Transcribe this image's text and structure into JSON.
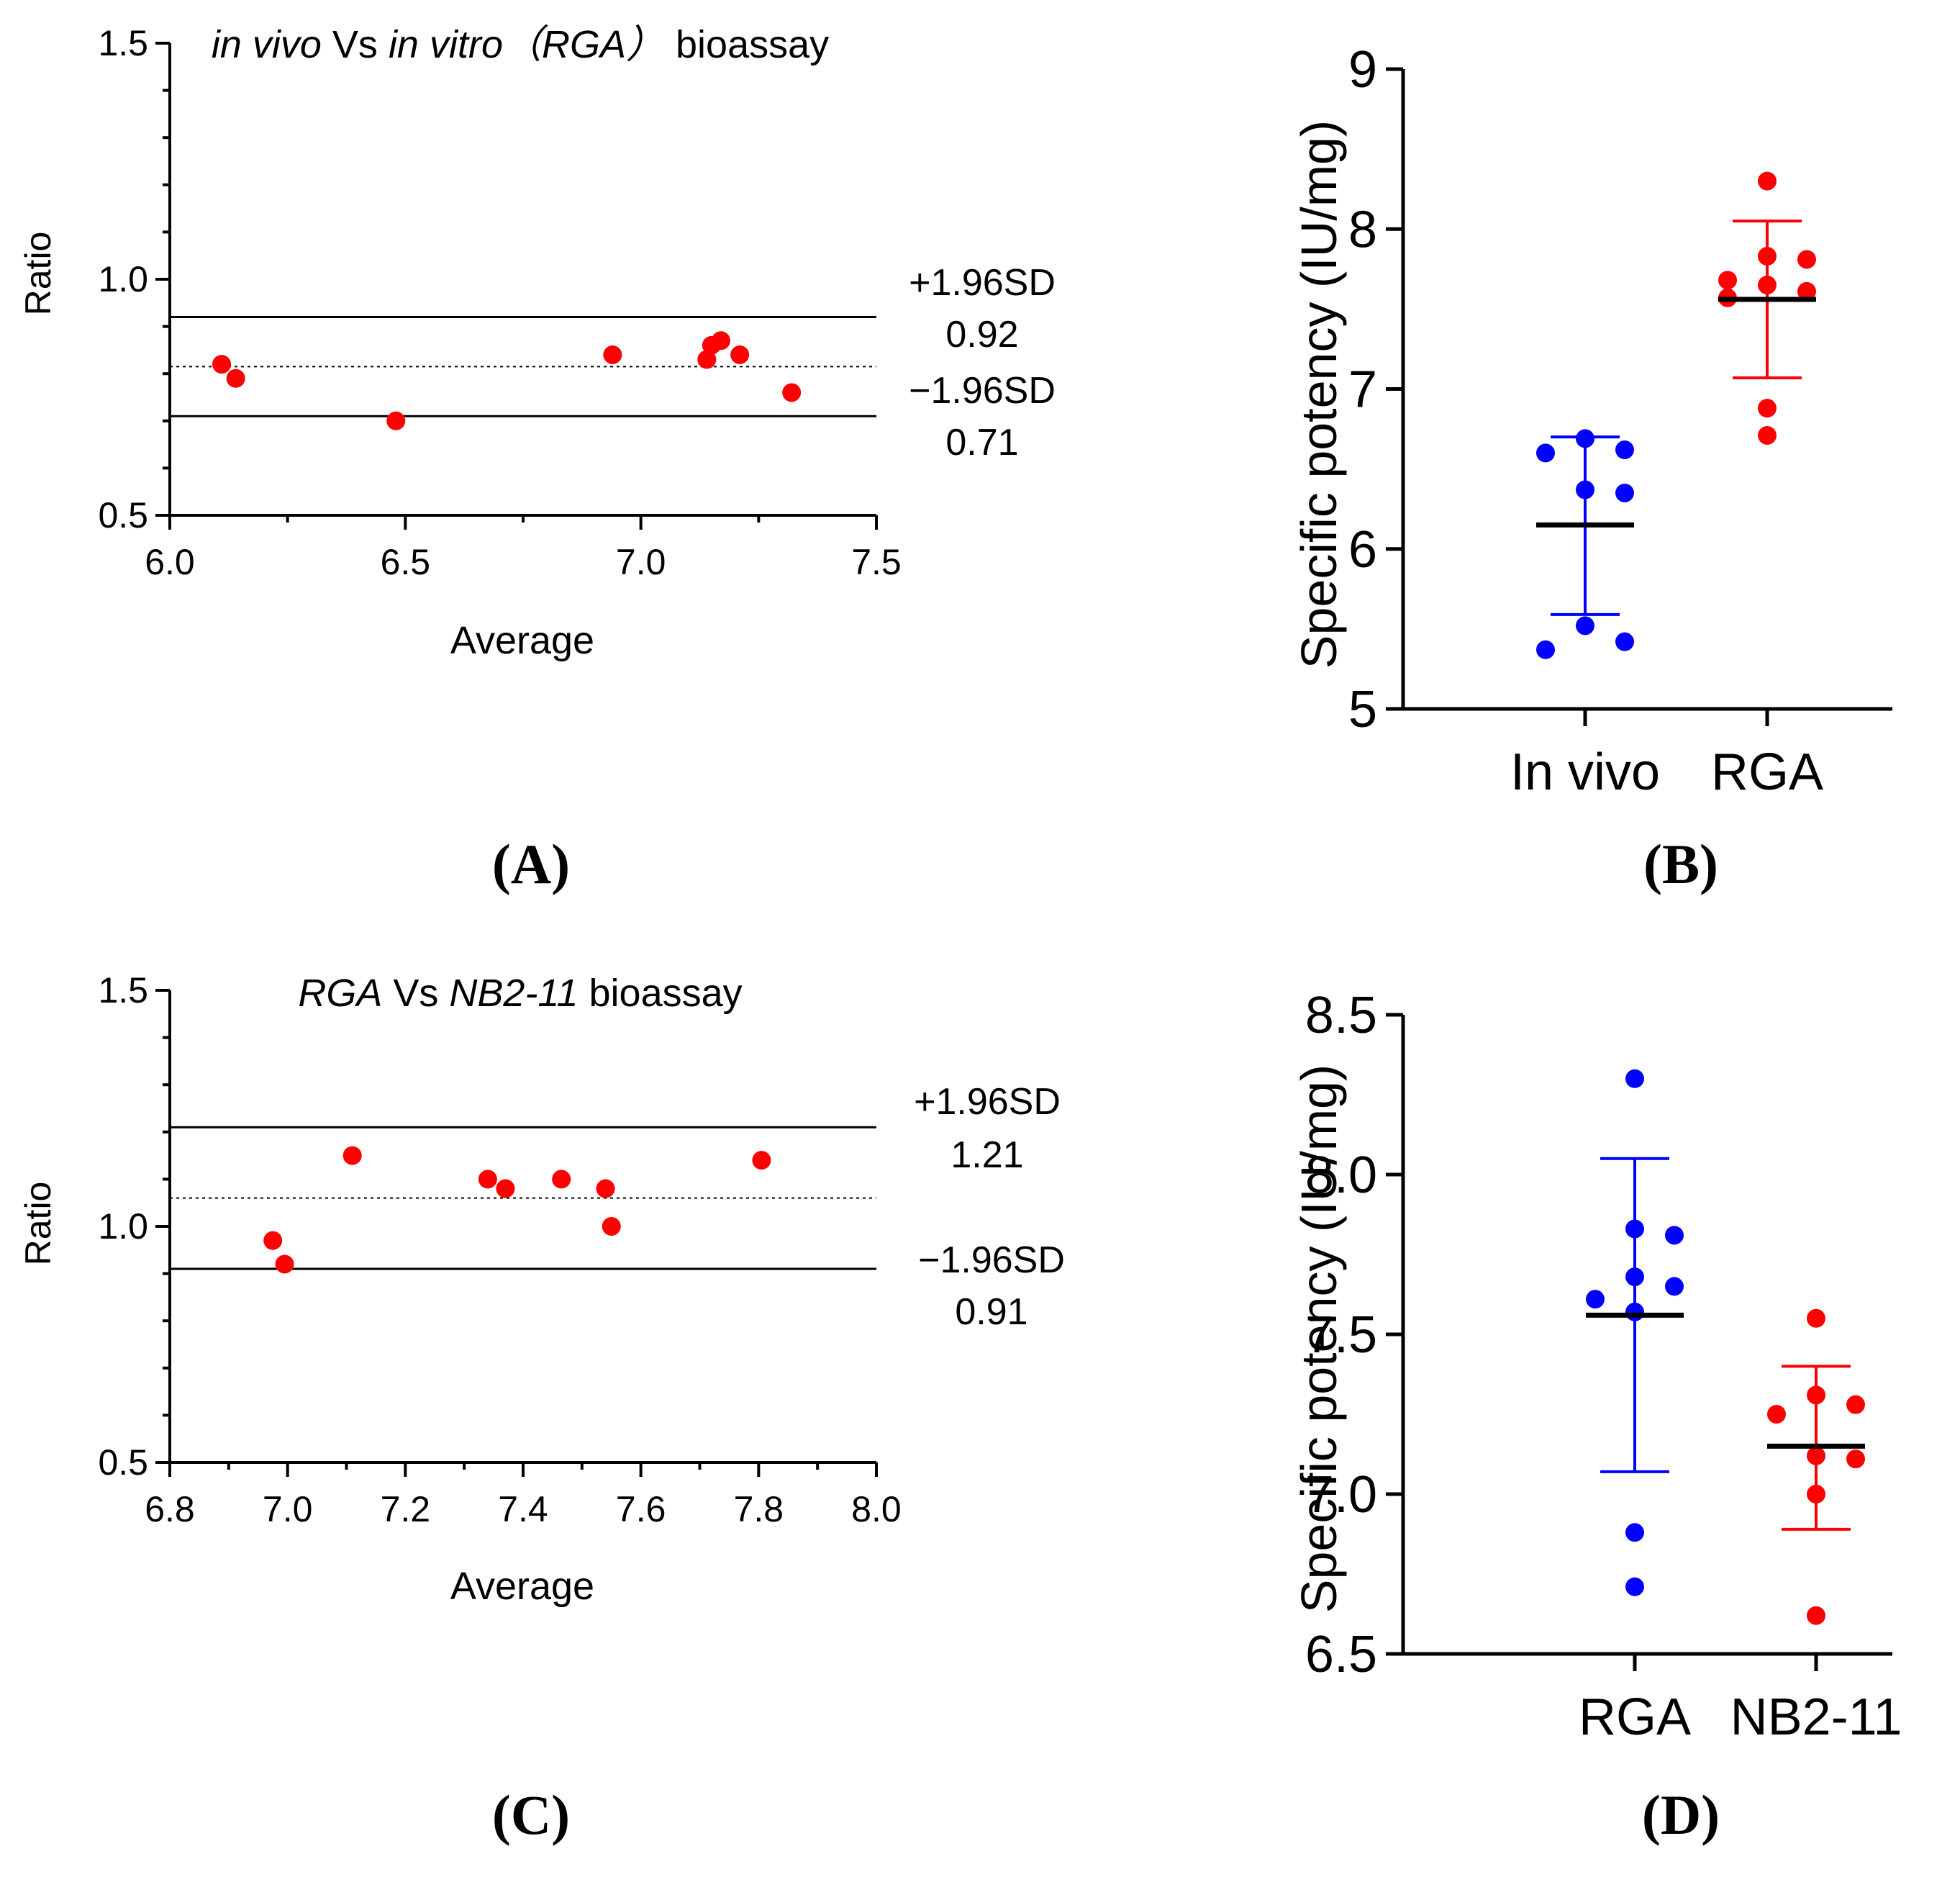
{
  "colors": {
    "red": "#ff0000",
    "blue": "#0000ff",
    "black": "#000000"
  },
  "chart_data": [
    {
      "id": "A",
      "type": "scatter",
      "panel_label": "(A)",
      "title_parts": [
        {
          "text": "in vivo",
          "italic": true
        },
        {
          "text": " Vs ",
          "italic": false
        },
        {
          "text": "in vitro",
          "italic": true
        },
        {
          "text": "（RGA）",
          "italic": true
        },
        {
          "text": " bioassay",
          "italic": false
        }
      ],
      "xlabel": "Average",
      "ylabel": "Ratio",
      "xlim": [
        6.0,
        7.5
      ],
      "ylim": [
        0.5,
        1.5
      ],
      "xticks": [
        "6.0",
        "6.5",
        "7.0",
        "7.5"
      ],
      "yticks": [
        "0.5",
        "1.0",
        "1.5"
      ],
      "points": [
        {
          "x": 6.11,
          "y": 0.82
        },
        {
          "x": 6.14,
          "y": 0.79
        },
        {
          "x": 6.48,
          "y": 0.7
        },
        {
          "x": 6.94,
          "y": 0.84
        },
        {
          "x": 7.14,
          "y": 0.83
        },
        {
          "x": 7.15,
          "y": 0.86
        },
        {
          "x": 7.17,
          "y": 0.87
        },
        {
          "x": 7.21,
          "y": 0.84
        },
        {
          "x": 7.32,
          "y": 0.76
        }
      ],
      "upper_limit": 0.92,
      "mean_line": 0.815,
      "lower_limit": 0.71,
      "upper_label": "+1.96SD",
      "upper_value_label": "0.92",
      "lower_label": "−1.96SD",
      "lower_value_label": "0.71"
    },
    {
      "id": "B",
      "type": "scatter",
      "panel_label": "(B)",
      "ylabel": "Specific potency (IU/mg)",
      "ylim": [
        5,
        9
      ],
      "yticks": [
        "5",
        "6",
        "7",
        "8",
        "9"
      ],
      "categories": [
        "In vivo",
        "RGA"
      ],
      "series": [
        {
          "name": "In vivo",
          "color": "blue",
          "mean": 6.15,
          "sd_upper": 6.7,
          "sd_lower": 5.59,
          "points": [
            6.69,
            6.62,
            6.6,
            6.37,
            6.35,
            5.52,
            5.42,
            5.37
          ]
        },
        {
          "name": "RGA",
          "color": "red",
          "mean": 7.56,
          "sd_upper": 8.05,
          "sd_lower": 7.07,
          "points": [
            8.3,
            7.83,
            7.81,
            7.68,
            7.65,
            7.61,
            7.57,
            6.88,
            6.71
          ]
        }
      ]
    },
    {
      "id": "C",
      "type": "scatter",
      "panel_label": "(C)",
      "title_parts": [
        {
          "text": "RGA",
          "italic": true
        },
        {
          "text": " Vs ",
          "italic": false
        },
        {
          "text": "NB2-11",
          "italic": true
        },
        {
          "text": " bioassay",
          "italic": false
        }
      ],
      "xlabel": "Average",
      "ylabel": "Ratio",
      "xlim": [
        6.8,
        8.0
      ],
      "ylim": [
        0.5,
        1.5
      ],
      "xticks": [
        "6.8",
        "7.0",
        "7.2",
        "7.4",
        "7.6",
        "7.8",
        "8.0"
      ],
      "yticks": [
        "0.5",
        "1.0",
        "1.5"
      ],
      "points": [
        {
          "x": 6.975,
          "y": 0.97
        },
        {
          "x": 6.995,
          "y": 0.92
        },
        {
          "x": 7.11,
          "y": 1.15
        },
        {
          "x": 7.34,
          "y": 1.1
        },
        {
          "x": 7.37,
          "y": 1.08
        },
        {
          "x": 7.465,
          "y": 1.1
        },
        {
          "x": 7.54,
          "y": 1.08
        },
        {
          "x": 7.55,
          "y": 1.0
        },
        {
          "x": 7.805,
          "y": 1.14
        }
      ],
      "upper_limit": 1.21,
      "mean_line": 1.06,
      "lower_limit": 0.91,
      "upper_label": "+1.96SD",
      "upper_value_label": "1.21",
      "lower_label": "−1.96SD",
      "lower_value_label": "0.91"
    },
    {
      "id": "D",
      "type": "scatter",
      "panel_label": "(D)",
      "ylabel": "Specific potency (IU/mg)",
      "ylim": [
        6.5,
        8.5
      ],
      "yticks": [
        "6.5",
        "7.0",
        "7.5",
        "8.0",
        "8.5"
      ],
      "categories": [
        "RGA",
        "NB2-11"
      ],
      "series": [
        {
          "name": "RGA",
          "color": "blue",
          "mean": 7.56,
          "sd_upper": 8.05,
          "sd_lower": 7.07,
          "points": [
            8.3,
            7.83,
            7.81,
            7.68,
            7.65,
            7.61,
            7.57,
            6.88,
            6.71
          ]
        },
        {
          "name": "NB2-11",
          "color": "red",
          "mean": 7.15,
          "sd_upper": 7.4,
          "sd_lower": 6.89,
          "points": [
            7.55,
            7.31,
            7.28,
            7.25,
            7.12,
            7.11,
            7.0,
            6.62
          ]
        }
      ]
    }
  ]
}
